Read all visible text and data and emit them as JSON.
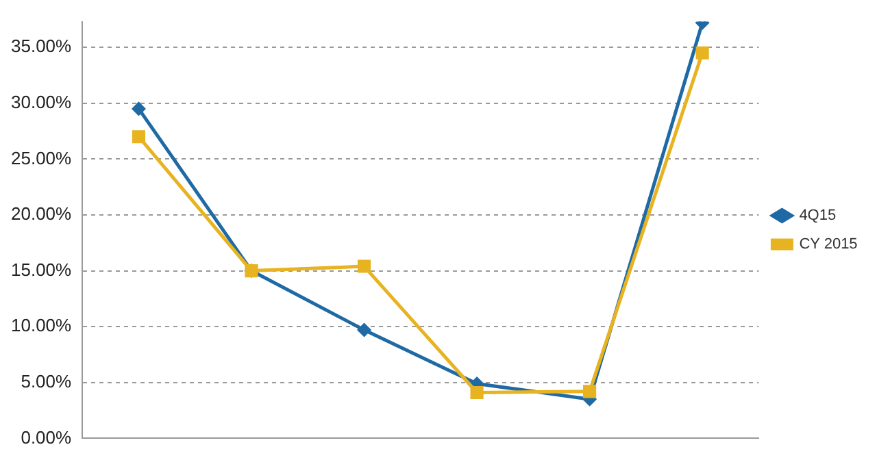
{
  "chart_data": {
    "type": "line",
    "categories": [
      null,
      null,
      null,
      null,
      null,
      null
    ],
    "series": [
      {
        "name": "4Q15",
        "color": "#1f6aa5",
        "marker": "diamond",
        "values": [
          29.5,
          15,
          9.7,
          4.9,
          3.5,
          37.2
        ]
      },
      {
        "name": "CY 2015",
        "color": "#e8b321",
        "marker": "square",
        "values": [
          27,
          15,
          15.4,
          4.1,
          4.2,
          34.5
        ]
      }
    ],
    "ylim": [
      0,
      37.3
    ],
    "yticks": [
      {
        "value": 0,
        "label": "0.00%"
      },
      {
        "value": 5,
        "label": "5.00%"
      },
      {
        "value": 10,
        "label": "10.00%"
      },
      {
        "value": 15,
        "label": "15.00%"
      },
      {
        "value": 20,
        "label": "20.00%"
      },
      {
        "value": 25,
        "label": "25.00%"
      },
      {
        "value": 30,
        "label": "30.00%"
      },
      {
        "value": 35,
        "label": "35.00%"
      }
    ],
    "grid": "y",
    "legend": "right",
    "tick_labels": "y",
    "line_style": "solid"
  }
}
